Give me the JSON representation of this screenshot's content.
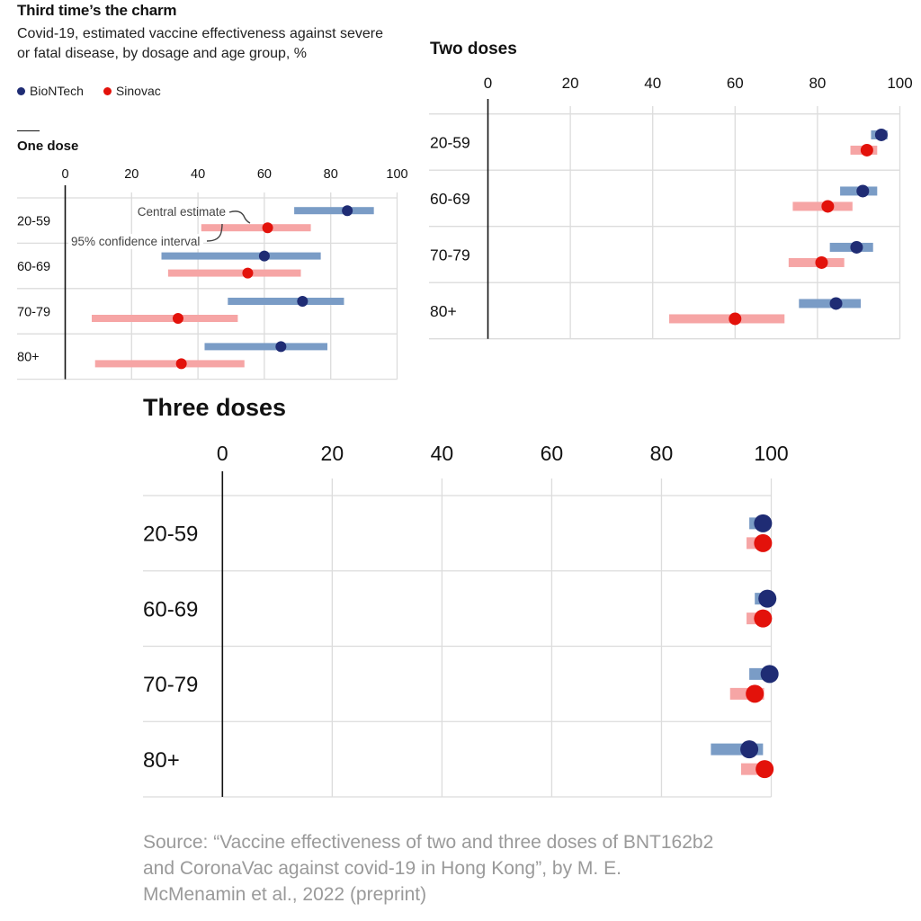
{
  "header": {
    "title": "Third time’s the charm",
    "subtitle": "Covid-19, estimated vaccine effectiveness against severe or fatal disease, by dosage and age group, %"
  },
  "legend": [
    {
      "label": "BioNTech",
      "color": "#1f2c74"
    },
    {
      "label": "Sinovac",
      "color": "#e3120b"
    }
  ],
  "colors": {
    "biontech_dot": "#1f2c74",
    "biontech_ci": "#7a9cc6",
    "sinovac_dot": "#e3120b",
    "sinovac_ci": "#f6a5a5",
    "grid": "#dcdcdc",
    "axis": "#121212"
  },
  "annotations": {
    "central_estimate": "Central estimate",
    "confidence_interval": "95% confidence interval"
  },
  "source": "Source: “Vaccine effectiveness of two and three doses of BNT162b2 and CoronaVac against covid-19 in Hong Kong”, by M. E. McMenamin et al., 2022 (preprint)",
  "chart_data": [
    {
      "type": "scatter",
      "title": "One dose",
      "xlabel": "",
      "ylabel": "",
      "xlim": [
        0,
        100
      ],
      "xticks": [
        "0",
        "20",
        "40",
        "60",
        "80",
        "100"
      ],
      "categories": [
        "20-59",
        "60-69",
        "70-79",
        "80+"
      ],
      "grid": true,
      "series": [
        {
          "name": "BioNTech",
          "estimate": [
            85,
            60,
            71.5,
            65
          ],
          "ci_low": [
            69,
            29,
            49,
            42
          ],
          "ci_high": [
            93,
            77,
            84,
            79
          ]
        },
        {
          "name": "Sinovac",
          "estimate": [
            61,
            55,
            34,
            35
          ],
          "ci_low": [
            41,
            31,
            8,
            9
          ],
          "ci_high": [
            74,
            71,
            52,
            54
          ]
        }
      ]
    },
    {
      "type": "scatter",
      "title": "Two doses",
      "xlabel": "",
      "ylabel": "",
      "xlim": [
        0,
        100
      ],
      "xticks": [
        "0",
        "20",
        "40",
        "60",
        "80",
        "100"
      ],
      "categories": [
        "20-59",
        "60-69",
        "70-79",
        "80+"
      ],
      "grid": true,
      "series": [
        {
          "name": "BioNTech",
          "estimate": [
            95.5,
            91,
            89.5,
            84.5
          ],
          "ci_low": [
            93,
            85.5,
            83,
            75.5
          ],
          "ci_high": [
            97,
            94.5,
            93.5,
            90.5
          ]
        },
        {
          "name": "Sinovac",
          "estimate": [
            92,
            82.5,
            81,
            60
          ],
          "ci_low": [
            88,
            74,
            73,
            44
          ],
          "ci_high": [
            94.5,
            88.5,
            86.5,
            72
          ]
        }
      ]
    },
    {
      "type": "scatter",
      "title": "Three doses",
      "xlabel": "",
      "ylabel": "",
      "xlim": [
        0,
        100
      ],
      "xticks": [
        "0",
        "20",
        "40",
        "60",
        "80",
        "100"
      ],
      "categories": [
        "20-59",
        "60-69",
        "70-79",
        "80+"
      ],
      "grid": true,
      "series": [
        {
          "name": "BioNTech",
          "estimate": [
            98.5,
            99.3,
            99.7,
            96
          ],
          "ci_low": [
            96,
            97,
            96,
            89
          ],
          "ci_high": [
            99.5,
            99.8,
            99.9,
            98.5
          ]
        },
        {
          "name": "Sinovac",
          "estimate": [
            98.5,
            98.5,
            97,
            98.8
          ],
          "ci_low": [
            95.5,
            95.5,
            92.5,
            94.5
          ],
          "ci_high": [
            99.5,
            99.5,
            98.7,
            99.7
          ]
        }
      ]
    }
  ]
}
